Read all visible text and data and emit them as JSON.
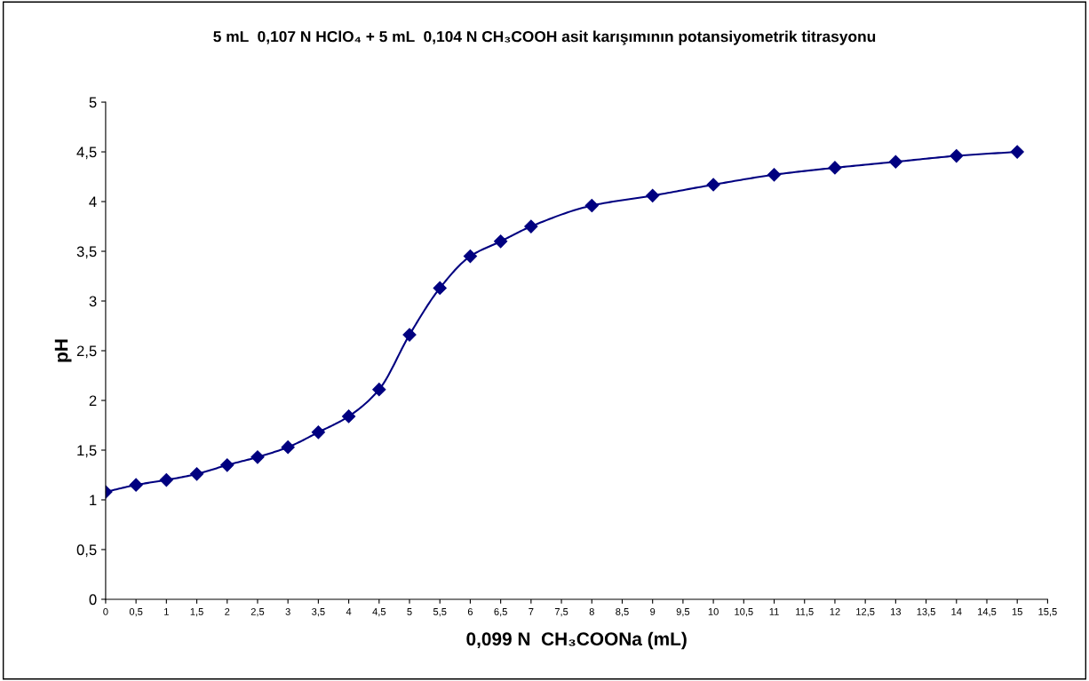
{
  "chart_data": {
    "type": "line",
    "title": "5 mL  0,107 N HClO₄ + 5 mL  0,104 N CH₃COOH asit karışımının potansiyometrik titrasyonu",
    "xlabel": "0,099 N  CH₃COONa (mL)",
    "ylabel": "pH",
    "x": [
      0,
      0.5,
      1,
      1.5,
      2,
      2.5,
      3,
      3.5,
      4,
      4.5,
      5,
      5.5,
      6,
      6.5,
      7,
      8,
      9,
      10,
      11,
      12,
      13,
      14,
      15
    ],
    "series": [
      {
        "color": "#000080",
        "values": [
          1.08,
          1.15,
          1.2,
          1.26,
          1.35,
          1.43,
          1.53,
          1.68,
          1.84,
          2.11,
          2.66,
          3.13,
          3.45,
          3.6,
          3.75,
          3.96,
          4.06,
          4.17,
          4.27,
          4.34,
          4.4,
          4.46,
          4.5
        ]
      }
    ],
    "xlim": [
      0,
      15.5
    ],
    "xticks": [
      {
        "value": 0,
        "label": "0"
      },
      {
        "value": 0.5,
        "label": "0,5"
      },
      {
        "value": 1,
        "label": "1"
      },
      {
        "value": 1.5,
        "label": "1,5"
      },
      {
        "value": 2,
        "label": "2"
      },
      {
        "value": 2.5,
        "label": "2,5"
      },
      {
        "value": 3,
        "label": "3"
      },
      {
        "value": 3.5,
        "label": "3,5"
      },
      {
        "value": 4,
        "label": "4"
      },
      {
        "value": 4.5,
        "label": "4,5"
      },
      {
        "value": 5,
        "label": "5"
      },
      {
        "value": 5.5,
        "label": "5,5"
      },
      {
        "value": 6,
        "label": "6"
      },
      {
        "value": 6.5,
        "label": "6,5"
      },
      {
        "value": 7,
        "label": "7"
      },
      {
        "value": 7.5,
        "label": "7,5"
      },
      {
        "value": 8,
        "label": "8"
      },
      {
        "value": 8.5,
        "label": "8,5"
      },
      {
        "value": 9,
        "label": "9"
      },
      {
        "value": 9.5,
        "label": "9,5"
      },
      {
        "value": 10,
        "label": "10"
      },
      {
        "value": 10.5,
        "label": "10,5"
      },
      {
        "value": 11,
        "label": "11"
      },
      {
        "value": 11.5,
        "label": "11,5"
      },
      {
        "value": 12,
        "label": "12"
      },
      {
        "value": 12.5,
        "label": "12,5"
      },
      {
        "value": 13,
        "label": "13"
      },
      {
        "value": 13.5,
        "label": "13,5"
      },
      {
        "value": 14,
        "label": "14"
      },
      {
        "value": 14.5,
        "label": "14,5"
      },
      {
        "value": 15,
        "label": "15"
      },
      {
        "value": 15.5,
        "label": "15,5"
      }
    ],
    "ylim": [
      0,
      5
    ],
    "yticks": [
      {
        "value": 0,
        "label": "0"
      },
      {
        "value": 0.5,
        "label": "0,5"
      },
      {
        "value": 1,
        "label": "1"
      },
      {
        "value": 1.5,
        "label": "1,5"
      },
      {
        "value": 2,
        "label": "2"
      },
      {
        "value": 2.5,
        "label": "2,5"
      },
      {
        "value": 3,
        "label": "3"
      },
      {
        "value": 3.5,
        "label": "3,5"
      },
      {
        "value": 4,
        "label": "4"
      },
      {
        "value": 4.5,
        "label": "4,5"
      },
      {
        "value": 5,
        "label": "5"
      }
    ],
    "grid": false,
    "marker": "diamond",
    "line_style": "solid"
  }
}
